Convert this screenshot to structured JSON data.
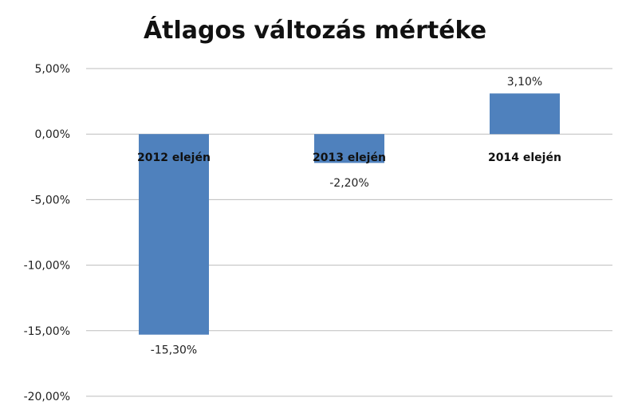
{
  "chart_data": {
    "type": "bar",
    "title": "Átlagos változás mértéke",
    "categories": [
      "2012 elején",
      "2013 elején",
      "2014 elején"
    ],
    "values": [
      -15.3,
      -2.2,
      3.1
    ],
    "data_labels": [
      "-15,30%",
      "-2,20%",
      "3,10%"
    ],
    "y_ticks": [
      5,
      0,
      -5,
      -10,
      -15,
      -20
    ],
    "y_tick_labels": [
      "5,00%",
      "0,00%",
      "-5,00%",
      "-10,00%",
      "-15,00%",
      "-20,00%"
    ],
    "ylim": [
      -20,
      5
    ],
    "xlabel": "",
    "ylabel": "",
    "grid": true,
    "legend": "none",
    "bar_color": "#4f81bd"
  }
}
